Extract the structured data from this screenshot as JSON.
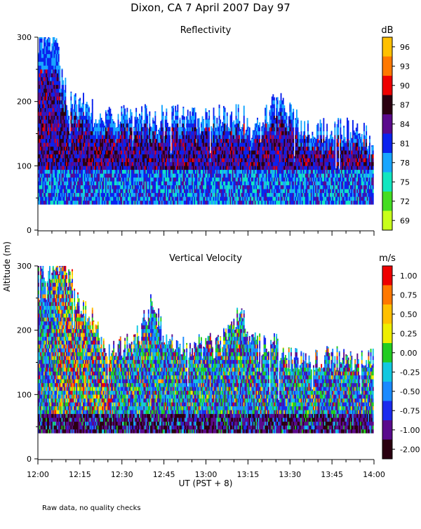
{
  "chart_data": {
    "type": "heatmap",
    "title": "Dixon, CA   7 April 2007   Day  97",
    "ylabel": "Altitude (m)",
    "xlabel": "UT   (PST + 8)",
    "footnote": "Raw data, no quality checks",
    "x_ticks": [
      "12:00",
      "12:15",
      "12:30",
      "12:45",
      "13:00",
      "13:15",
      "13:30",
      "13:45",
      "14:00"
    ],
    "x_range_minutes": [
      0,
      120
    ],
    "y_range_m": [
      0,
      300
    ],
    "y_ticks": [
      0,
      100,
      200,
      300
    ],
    "panels": [
      {
        "name": "reflectivity",
        "title": "Reflectivity",
        "units": "dB",
        "colorbar_labels": [
          "96",
          "93",
          "90",
          "87",
          "84",
          "81",
          "78",
          "75",
          "72",
          "69"
        ],
        "colorbar_colors": [
          "#ffc000",
          "#ff7800",
          "#ee0000",
          "#2a0010",
          "#5a0a8c",
          "#0a22ee",
          "#18a6ff",
          "#12e6c0",
          "#44dd22",
          "#c8ff1a"
        ],
        "min_altitude_m": 40,
        "echo_top_profile_m": [
          300,
          300,
          300,
          240,
          200,
          200,
          200,
          190,
          180,
          180,
          180,
          180,
          180,
          180,
          180,
          180,
          180,
          180,
          180,
          180,
          180,
          180,
          180,
          180,
          180,
          180,
          180,
          180,
          180,
          180,
          160,
          160,
          160,
          180,
          200,
          200,
          200,
          180,
          170,
          160,
          160,
          160,
          160,
          160,
          160,
          160,
          160,
          160,
          140
        ],
        "core_value_db": 87,
        "base_value_db": 78
      },
      {
        "name": "vertical-velocity",
        "title": "Vertical Velocity",
        "units": "m/s",
        "colorbar_labels": [
          "1.00",
          "0.75",
          "0.50",
          "0.25",
          "0.00",
          "-0.25",
          "-0.50",
          "-0.75",
          "-1.00",
          "-2.00"
        ],
        "colorbar_colors": [
          "#ee0000",
          "#ff7800",
          "#ffc000",
          "#eeee00",
          "#22cc22",
          "#12c8e0",
          "#1a8aff",
          "#1a2aee",
          "#5a0a8c",
          "#2a0010"
        ],
        "min_altitude_m": 40,
        "echo_top_profile_m": [
          300,
          300,
          300,
          300,
          280,
          260,
          240,
          220,
          200,
          180,
          180,
          180,
          180,
          180,
          200,
          220,
          240,
          220,
          200,
          180,
          180,
          180,
          180,
          180,
          180,
          180,
          180,
          200,
          220,
          220,
          200,
          200,
          180,
          180,
          180,
          170,
          160,
          160,
          160,
          160,
          160,
          160,
          160,
          160,
          160,
          160,
          160,
          160,
          160
        ],
        "near_ground_value": -1.0
      }
    ]
  }
}
